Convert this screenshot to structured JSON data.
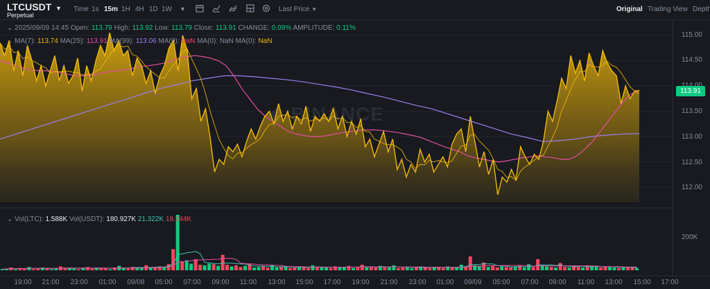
{
  "header": {
    "symbol": "LTCUSDT",
    "contract": "Perpetual",
    "timeframes": [
      "Time",
      "1s",
      "15m",
      "1H",
      "4H",
      "1D",
      "1W"
    ],
    "active_timeframe": "15m",
    "price_type": "Last Price",
    "views": [
      "Original",
      "Trading View",
      "Depth"
    ],
    "active_view": "Original"
  },
  "ohlc": {
    "datetime": "2025/09/09 14:45",
    "open_label": "Open:",
    "open": "113.79",
    "high_label": "High:",
    "high": "113.92",
    "low_label": "Low:",
    "low": "113.79",
    "close_label": "Close:",
    "close": "113.91",
    "change_label": "CHANGE:",
    "change": "0.09%",
    "amplitude_label": "AMPLITUDE:",
    "amplitude": "0.11%"
  },
  "ma": {
    "ma7_label": "MA(7):",
    "ma7": "113.74",
    "ma25_label": "MA(25):",
    "ma25": "113.91",
    "ma99_label": "MA(99):",
    "ma99": "113.06",
    "ma0a_label": "MA(0):",
    "ma0a": "NaN",
    "ma0b_label": "MA(0):",
    "ma0b": "NaN",
    "ma0c_label": "MA(0):",
    "ma0c": "NaN"
  },
  "volume": {
    "ltc_label": "Vol(LTC):",
    "ltc": "1.588K",
    "usdt_label": "Vol(USDT):",
    "usdt": "180.927K",
    "v2": "21.322K",
    "v3": "19.244K",
    "axis_label": "200K"
  },
  "price_axis": [
    "115.00",
    "114.50",
    "114.00",
    "113.50",
    "113.00",
    "112.50",
    "112.00"
  ],
  "current_price": "113.91",
  "time_axis": [
    "19:00",
    "21:00",
    "23:00",
    "01:00",
    "09/08",
    "05:00",
    "07:00",
    "09:00",
    "11:00",
    "13:00",
    "15:00",
    "17:00",
    "19:00",
    "21:00",
    "23:00",
    "01:00",
    "09/09",
    "05:00",
    "07:00",
    "09:00",
    "11:00",
    "13:00",
    "15:00",
    "17:00"
  ],
  "watermark": "BINANCE",
  "colors": {
    "up": "#0ecb81",
    "down": "#f6465d",
    "line": "#f0b90b",
    "ma7": "#f0b90b",
    "ma25": "#e44ea0",
    "ma99": "#9c7ff1"
  },
  "chart_data": {
    "type": "area",
    "ylim": [
      111.7,
      115.15
    ],
    "price_series": [
      114.85,
      114.6,
      114.9,
      114.3,
      114.7,
      114.2,
      114.8,
      114.5,
      114.1,
      114.4,
      114.0,
      114.3,
      114.6,
      114.1,
      114.4,
      114.05,
      114.2,
      114.55,
      113.9,
      114.4,
      114.1,
      114.5,
      114.8,
      114.6,
      115.05,
      114.7,
      114.9,
      114.6,
      114.7,
      114.2,
      114.55,
      114.4,
      114.05,
      114.3,
      113.85,
      114.2,
      114.4,
      114.75,
      114.9,
      114.3,
      115.0,
      114.7,
      113.75,
      113.95,
      113.3,
      113.55,
      113.0,
      112.3,
      112.55,
      112.45,
      112.8,
      112.7,
      112.85,
      112.6,
      112.9,
      113.15,
      112.95,
      113.2,
      113.4,
      113.5,
      113.25,
      113.65,
      113.3,
      113.5,
      113.15,
      113.4,
      113.25,
      113.6,
      113.1,
      113.4,
      113.3,
      113.45,
      113.3,
      113.55,
      113.15,
      113.4,
      113.0,
      113.3,
      113.05,
      113.35,
      112.8,
      112.95,
      112.6,
      112.85,
      113.1,
      112.7,
      112.95,
      112.35,
      112.55,
      112.2,
      112.45,
      112.3,
      112.75,
      112.5,
      112.65,
      112.3,
      112.45,
      112.6,
      112.4,
      112.85,
      113.05,
      113.15,
      112.7,
      113.4,
      112.9,
      112.4,
      112.7,
      112.25,
      112.55,
      111.85,
      112.2,
      112.1,
      112.35,
      112.15,
      112.8,
      112.6,
      112.45,
      112.65,
      112.55,
      112.9,
      113.5,
      113.3,
      113.7,
      114.15,
      113.95,
      114.6,
      114.25,
      114.5,
      114.1,
      114.65,
      114.4,
      114.2,
      114.7,
      114.45,
      114.3,
      114.2,
      113.65,
      114.0,
      113.75,
      113.9,
      113.91
    ],
    "ma25_series": [
      114.5,
      114.45,
      114.4,
      114.35,
      114.32,
      114.3,
      114.3,
      114.28,
      114.25,
      114.22,
      114.2,
      114.2,
      114.22,
      114.25,
      114.28,
      114.3,
      114.32,
      114.35,
      114.38,
      114.4,
      114.42,
      114.45,
      114.5,
      114.55,
      114.58,
      114.6,
      114.58,
      114.55,
      114.5,
      114.4,
      114.2,
      113.95,
      113.75,
      113.55,
      113.4,
      113.3,
      113.2,
      113.1,
      113.05,
      113.02,
      113.0,
      113.0,
      113.02,
      113.05,
      113.08,
      113.1,
      113.12,
      113.13,
      113.13,
      113.12,
      113.1,
      113.08,
      113.05,
      113.02,
      112.98,
      112.92,
      112.86,
      112.8,
      112.75,
      112.7,
      112.62,
      112.58,
      112.55,
      112.52,
      112.5,
      112.52,
      112.55,
      112.58,
      112.6,
      112.62,
      112.6,
      112.58,
      112.55,
      112.55,
      112.62,
      112.75,
      112.9,
      113.1,
      113.3,
      113.5,
      113.7,
      113.85,
      113.91
    ],
    "ma99_series": [
      112.95,
      113.05,
      113.15,
      113.25,
      113.35,
      113.45,
      113.55,
      113.65,
      113.75,
      113.85,
      113.95,
      114.02,
      114.1,
      114.15,
      114.2,
      114.2,
      114.18,
      114.15,
      114.12,
      114.08,
      114.03,
      113.98,
      113.92,
      113.85,
      113.78,
      113.7,
      113.62,
      113.55,
      113.45,
      113.35,
      113.25,
      113.15,
      113.05,
      112.98,
      112.9,
      112.92,
      112.95,
      113.0,
      113.03,
      113.05,
      113.06
    ],
    "volume": [
      0.02,
      0.03,
      0.05,
      0.02,
      0.04,
      0.03,
      0.06,
      0.02,
      0.03,
      0.05,
      0.04,
      0.02,
      0.03,
      0.07,
      0.04,
      0.05,
      0.03,
      0.02,
      0.04,
      0.06,
      0.03,
      0.05,
      0.04,
      0.03,
      0.02,
      0.05,
      0.08,
      0.04,
      0.03,
      0.06,
      0.05,
      0.04,
      0.09,
      0.05,
      0.05,
      0.07,
      0.06,
      0.11,
      0.38,
      1.0,
      0.16,
      0.18,
      0.12,
      0.2,
      0.1,
      0.09,
      0.12,
      0.11,
      0.08,
      0.28,
      0.1,
      0.07,
      0.09,
      0.06,
      0.08,
      0.12,
      0.05,
      0.06,
      0.07,
      0.05,
      0.09,
      0.05,
      0.06,
      0.06,
      0.04,
      0.05,
      0.07,
      0.05,
      0.04,
      0.09,
      0.05,
      0.06,
      0.05,
      0.04,
      0.07,
      0.05,
      0.06,
      0.08,
      0.04,
      0.05,
      0.1,
      0.05,
      0.06,
      0.05,
      0.08,
      0.05,
      0.06,
      0.09,
      0.04,
      0.05,
      0.06,
      0.04,
      0.05,
      0.07,
      0.05,
      0.04,
      0.06,
      0.05,
      0.04,
      0.07,
      0.05,
      0.06,
      0.1,
      0.07,
      0.25,
      0.09,
      0.07,
      0.14,
      0.06,
      0.08,
      0.05,
      0.07,
      0.06,
      0.05,
      0.07,
      0.08,
      0.05,
      0.11,
      0.06,
      0.2,
      0.08,
      0.07,
      0.06,
      0.05,
      0.13,
      0.06,
      0.05,
      0.07,
      0.06,
      0.05,
      0.09,
      0.08,
      0.06,
      0.05,
      0.07,
      0.06,
      0.05,
      0.04,
      0.05,
      0.06,
      0.05,
      0.04
    ]
  }
}
